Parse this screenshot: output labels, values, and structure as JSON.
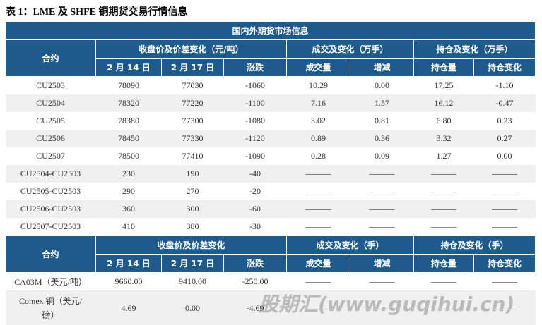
{
  "title": "表 1：LME 及 SHFE 铜期货交易行情信息",
  "table": {
    "caption": "国内外期货市场信息",
    "sections": [
      {
        "header": {
          "contract": "合约",
          "groups": [
            "收盘价及价差变化（元/吨）",
            "成交及变化（万手）",
            "持仓及变化（万手）"
          ],
          "columns": [
            "2 月 14 日",
            "2 月 17 日",
            "涨跌",
            "成交量",
            "增减",
            "持仓量",
            "持仓变化"
          ]
        },
        "rows": [
          [
            "CU2503",
            "78090",
            "77030",
            "-1060",
            "10.29",
            "0.00",
            "17.25",
            "-1.10"
          ],
          [
            "CU2504",
            "78320",
            "77220",
            "-1100",
            "7.16",
            "1.57",
            "16.12",
            "-0.47"
          ],
          [
            "CU2505",
            "78380",
            "77300",
            "-1080",
            "3.02",
            "0.81",
            "6.80",
            "0.23"
          ],
          [
            "CU2506",
            "78450",
            "77330",
            "-1120",
            "0.89",
            "0.36",
            "3.32",
            "0.27"
          ],
          [
            "CU2507",
            "78500",
            "77410",
            "-1090",
            "0.28",
            "0.09",
            "1.27",
            "0.00"
          ],
          [
            "CU2504-CU2503",
            "230",
            "190",
            "-40",
            "———",
            "———",
            "———",
            "———"
          ],
          [
            "CU2505-CU2503",
            "290",
            "270",
            "-20",
            "———",
            "———",
            "———",
            "———"
          ],
          [
            "CU2506-CU2503",
            "360",
            "300",
            "-60",
            "———",
            "———",
            "———",
            "———"
          ],
          [
            "CU2507-CU2503",
            "410",
            "380",
            "-30",
            "———",
            "———",
            "———",
            "———"
          ]
        ]
      },
      {
        "header": {
          "contract": "合约",
          "groups": [
            "收盘价及价差变化",
            "成交及变化（手）",
            "持仓及变化（手）"
          ],
          "columns": [
            "2 月 14 日",
            "2 月 17 日",
            "涨跌",
            "成交量",
            "增减",
            "持仓量",
            "持仓变化"
          ]
        },
        "rows": [
          [
            "CA03M（美元/吨）",
            "9660.00",
            "9410.00",
            "-250.00",
            "———",
            "———",
            "———",
            "———"
          ],
          [
            "Comex 铜（美元/磅）",
            "4.69",
            "0.00",
            "-4.69",
            "———",
            "———",
            "———",
            "———"
          ]
        ]
      }
    ]
  },
  "watermark": "股期汇(www.guqihui.cn)"
}
